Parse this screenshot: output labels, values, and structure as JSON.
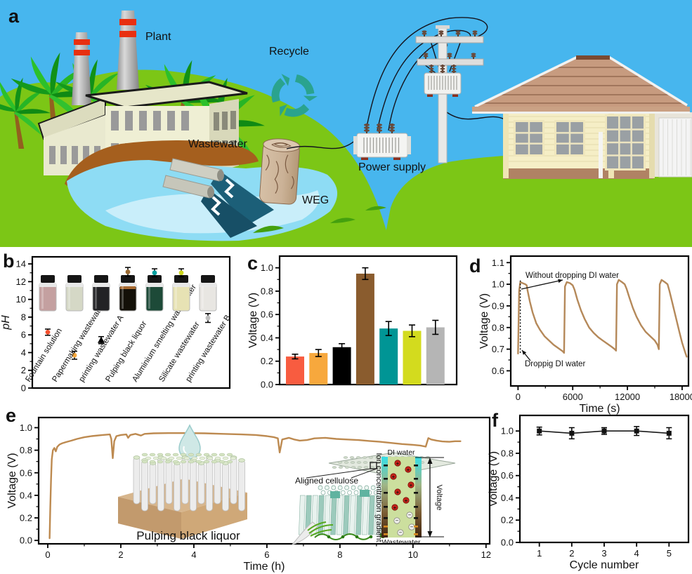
{
  "panels": {
    "a": {
      "label": "a",
      "plant": "Plant",
      "recycle": "Recycle",
      "wastewater": "Wastewater",
      "weg": "WEG",
      "power_supply": "Power supply"
    },
    "b": {
      "label": "b"
    },
    "c": {
      "label": "c"
    },
    "d": {
      "label": "d",
      "annotation_top": "Without dropping DI water",
      "annotation_bottom": "Droppig DI water"
    },
    "e": {
      "label": "e",
      "inset_block_caption": "Pulping black liquor",
      "inset_zoom_caption": "Aligned cellulose",
      "inset_column_top": "DI water",
      "inset_column_bottom": "Wastewater",
      "inset_column_left": "Ion concentration gradient",
      "inset_column_right": "Voltage"
    },
    "f": {
      "label": "f"
    }
  },
  "chart_data": [
    {
      "panel": "b",
      "type": "scatter",
      "ylabel": "pH",
      "ylabel_italic": true,
      "xlabel": "",
      "ylim": [
        0,
        14.8
      ],
      "yticks": [
        0,
        2,
        4,
        6,
        8,
        10,
        12,
        14
      ],
      "yminor": 2,
      "series": [
        {
          "label": "Fountain solution",
          "color": "#f4502e",
          "liquid": "#c4a0a0",
          "pH": 6.3,
          "err": 0.35,
          "marker": "circle"
        },
        {
          "label": "Papermaking wastewater",
          "color": "#f7a83d",
          "liquid": "#d5d8c6",
          "pH": 3.7,
          "err": 0.45,
          "marker": "circle"
        },
        {
          "label": "printing wastewater A",
          "color": "#000000",
          "liquid": "#222225",
          "pH": 5.4,
          "err": 0.4,
          "marker": "triangle"
        },
        {
          "label": "Pulping black liquor",
          "color": "#9a6a32",
          "liquid": "#131008",
          "pH": 13.1,
          "err": 0.5,
          "marker": "circle"
        },
        {
          "label": "Aluminium smelting wastewater",
          "color": "#00a0a0",
          "liquid": "#1d4a38",
          "pH": 13.0,
          "err": 0.45,
          "marker": "circle"
        },
        {
          "label": "Silicate wastewater",
          "color": "#cdd71e",
          "liquid": "#e7e2b4",
          "pH": 13.0,
          "err": 0.45,
          "marker": "circle"
        },
        {
          "label": "printing wastewater B",
          "color": "#bdbdbd",
          "liquid": "#e8e6e2",
          "pH": 7.9,
          "err": 0.5,
          "marker": "circle"
        }
      ]
    },
    {
      "panel": "c",
      "type": "bar",
      "ylabel": "Voltage (V)",
      "xlabel": "",
      "ylim": [
        0,
        1.1
      ],
      "yticks": [
        0.0,
        0.2,
        0.4,
        0.6,
        0.8,
        1.0
      ],
      "yminor": 0.2,
      "ydecimals": 1,
      "categories": [
        "Fountain solution",
        "Papermaking wastewater",
        "printing wastewater A",
        "Pulping black liquor",
        "Aluminium smelting wastewater",
        "Silicate wastewater",
        "printing wastewater B"
      ],
      "values": [
        0.24,
        0.27,
        0.32,
        0.95,
        0.48,
        0.46,
        0.49
      ],
      "errors": [
        0.02,
        0.03,
        0.03,
        0.05,
        0.06,
        0.05,
        0.06
      ],
      "colors": [
        "#f85c40",
        "#f7a83d",
        "#000000",
        "#8a5c2e",
        "#009595",
        "#d3db1e",
        "#b5b5b5"
      ]
    },
    {
      "panel": "d",
      "type": "line",
      "ylabel": "Voltage (V)",
      "xlabel": "Time (s)",
      "xlim": [
        -800,
        18700
      ],
      "ylim": [
        0.53,
        1.13
      ],
      "xticks": [
        0,
        6000,
        12000,
        18000
      ],
      "yticks": [
        0.6,
        0.7,
        0.8,
        0.9,
        1.0,
        1.1
      ],
      "xminor": 6000,
      "yminor": 0.1,
      "ydecimals": 1,
      "line_color": "#b5895a",
      "dashed_marker_x": 250,
      "dashed_marker_y": [
        0.683,
        1.02
      ],
      "points": [
        [
          0,
          0.68
        ],
        [
          120,
          0.97
        ],
        [
          250,
          1.01
        ],
        [
          500,
          1.005
        ],
        [
          800,
          1.0
        ],
        [
          950,
          0.995
        ],
        [
          1050,
          0.97
        ],
        [
          1300,
          0.92
        ],
        [
          1600,
          0.87
        ],
        [
          2000,
          0.82
        ],
        [
          2400,
          0.79
        ],
        [
          2900,
          0.76
        ],
        [
          3400,
          0.74
        ],
        [
          3900,
          0.72
        ],
        [
          4400,
          0.705
        ],
        [
          4900,
          0.69
        ],
        [
          5050,
          0.683
        ],
        [
          5150,
          0.99
        ],
        [
          5350,
          1.01
        ],
        [
          5700,
          1.005
        ],
        [
          6000,
          0.995
        ],
        [
          6200,
          0.975
        ],
        [
          6500,
          0.93
        ],
        [
          6900,
          0.88
        ],
        [
          7300,
          0.84
        ],
        [
          7800,
          0.8
        ],
        [
          8300,
          0.775
        ],
        [
          8800,
          0.755
        ],
        [
          9300,
          0.74
        ],
        [
          9800,
          0.725
        ],
        [
          10300,
          0.71
        ],
        [
          10600,
          0.7
        ],
        [
          10750,
          0.693
        ],
        [
          10850,
          1.0
        ],
        [
          11050,
          1.02
        ],
        [
          11400,
          1.01
        ],
        [
          11700,
          1.0
        ],
        [
          11900,
          0.98
        ],
        [
          12200,
          0.94
        ],
        [
          12600,
          0.89
        ],
        [
          13000,
          0.85
        ],
        [
          13500,
          0.81
        ],
        [
          14000,
          0.78
        ],
        [
          14500,
          0.76
        ],
        [
          15000,
          0.74
        ],
        [
          15300,
          0.72
        ],
        [
          15450,
          0.7
        ],
        [
          15550,
          1.0
        ],
        [
          15750,
          1.02
        ],
        [
          16100,
          1.01
        ],
        [
          16400,
          1.0
        ],
        [
          16600,
          0.97
        ],
        [
          16900,
          0.92
        ],
        [
          17300,
          0.85
        ],
        [
          17700,
          0.78
        ],
        [
          18000,
          0.73
        ],
        [
          18300,
          0.69
        ],
        [
          18500,
          0.665
        ]
      ]
    },
    {
      "panel": "e",
      "type": "line",
      "ylabel": "Voltage (V)",
      "xlabel": "Time (h)",
      "xlim": [
        -0.25,
        12.1
      ],
      "ylim": [
        -0.03,
        1.09
      ],
      "xticks": [
        0,
        2,
        4,
        6,
        8,
        10,
        12
      ],
      "yticks": [
        0.0,
        0.2,
        0.4,
        0.6,
        0.8,
        1.0
      ],
      "xminor": 2,
      "yminor": 0.2,
      "ydecimals": 1,
      "line_color": "#bd8a50",
      "points": [
        [
          0.05,
          0.02
        ],
        [
          0.07,
          0.3
        ],
        [
          0.09,
          0.55
        ],
        [
          0.11,
          0.72
        ],
        [
          0.14,
          0.8
        ],
        [
          0.18,
          0.82
        ],
        [
          0.22,
          0.79
        ],
        [
          0.26,
          0.83
        ],
        [
          0.32,
          0.85
        ],
        [
          0.4,
          0.862
        ],
        [
          0.5,
          0.872
        ],
        [
          0.65,
          0.885
        ],
        [
          0.8,
          0.9
        ],
        [
          1.0,
          0.915
        ],
        [
          1.2,
          0.925
        ],
        [
          1.5,
          0.935
        ],
        [
          1.7,
          0.94
        ],
        [
          1.74,
          0.9
        ],
        [
          1.78,
          0.73
        ],
        [
          1.82,
          0.88
        ],
        [
          1.88,
          0.925
        ],
        [
          2.0,
          0.935
        ],
        [
          2.15,
          0.94
        ],
        [
          2.2,
          0.91
        ],
        [
          2.26,
          0.935
        ],
        [
          2.4,
          0.945
        ],
        [
          2.55,
          0.93
        ],
        [
          2.65,
          0.945
        ],
        [
          2.9,
          0.95
        ],
        [
          3.3,
          0.952
        ],
        [
          3.8,
          0.952
        ],
        [
          4.3,
          0.95
        ],
        [
          4.8,
          0.945
        ],
        [
          5.3,
          0.94
        ],
        [
          5.7,
          0.935
        ],
        [
          6.0,
          0.925
        ],
        [
          6.2,
          0.915
        ],
        [
          6.3,
          0.905
        ],
        [
          6.35,
          0.78
        ],
        [
          6.42,
          0.895
        ],
        [
          6.6,
          0.91
        ],
        [
          6.75,
          0.895
        ],
        [
          6.9,
          0.885
        ],
        [
          7.1,
          0.89
        ],
        [
          7.3,
          0.905
        ],
        [
          7.6,
          0.91
        ],
        [
          7.9,
          0.9
        ],
        [
          8.2,
          0.895
        ],
        [
          8.5,
          0.89
        ],
        [
          8.8,
          0.882
        ],
        [
          9.1,
          0.875
        ],
        [
          9.4,
          0.865
        ],
        [
          9.7,
          0.855
        ],
        [
          10.0,
          0.848
        ],
        [
          10.2,
          0.842
        ],
        [
          10.35,
          0.832
        ],
        [
          10.42,
          0.908
        ],
        [
          10.5,
          0.895
        ],
        [
          10.65,
          0.885
        ],
        [
          10.8,
          0.878
        ],
        [
          11.0,
          0.875
        ],
        [
          11.15,
          0.88
        ],
        [
          11.3,
          0.88
        ]
      ]
    },
    {
      "panel": "f",
      "type": "line-markers",
      "ylabel": "Voltage (V)",
      "xlabel": "Cycle number",
      "xlim": [
        0.4,
        5.6
      ],
      "ylim": [
        0,
        1.14
      ],
      "xticks": [
        1,
        2,
        3,
        4,
        5
      ],
      "yticks": [
        0.0,
        0.2,
        0.4,
        0.6,
        0.8,
        1.0
      ],
      "yminor": 0.2,
      "ydecimals": 1,
      "line_color": "#1a1a1a",
      "x": [
        1,
        2,
        3,
        4,
        5
      ],
      "values": [
        1.0,
        0.98,
        1.0,
        1.0,
        0.98
      ],
      "errors": [
        0.035,
        0.05,
        0.03,
        0.04,
        0.05
      ]
    }
  ]
}
